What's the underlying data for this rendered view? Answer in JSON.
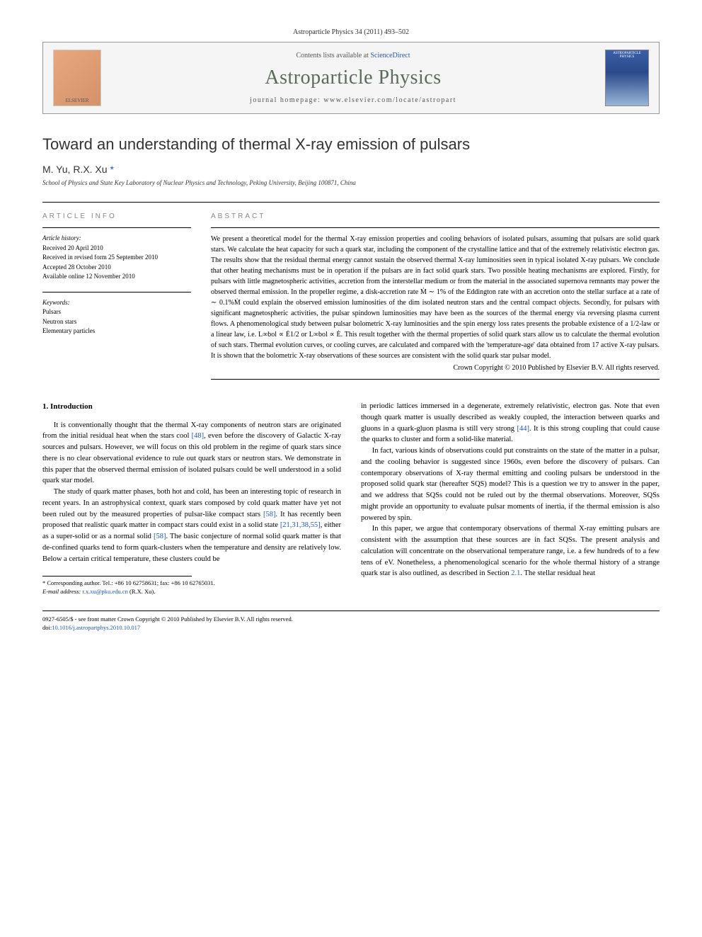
{
  "header_citation": "Astroparticle Physics 34 (2011) 493–502",
  "banner": {
    "elsevier_label": "ELSEVIER",
    "contents_prefix": "Contents lists available at ",
    "contents_link": "ScienceDirect",
    "journal_title": "Astroparticle Physics",
    "homepage_label": "journal homepage: www.elsevier.com/locate/astropart",
    "cover_label": "ASTROPARTICLE PHYSICS"
  },
  "article": {
    "title": "Toward an understanding of thermal X-ray emission of pulsars",
    "authors_html": "M. Yu, R.X. Xu",
    "corr_mark": "*",
    "affiliation": "School of Physics and State Key Laboratory of Nuclear Physics and Technology, Peking University, Beijing 100871, China"
  },
  "info": {
    "heading": "ARTICLE INFO",
    "history_label": "Article history:",
    "received": "Received 20 April 2010",
    "revised": "Received in revised form 25 September 2010",
    "accepted": "Accepted 28 October 2010",
    "online": "Available online 12 November 2010",
    "keywords_label": "Keywords:",
    "keywords": [
      "Pulsars",
      "Neutron stars",
      "Elementary particles"
    ]
  },
  "abstract": {
    "heading": "ABSTRACT",
    "text": "We present a theoretical model for the thermal X-ray emission properties and cooling behaviors of isolated pulsars, assuming that pulsars are solid quark stars. We calculate the heat capacity for such a quark star, including the component of the crystalline lattice and that of the extremely relativistic electron gas. The results show that the residual thermal energy cannot sustain the observed thermal X-ray luminosities seen in typical isolated X-ray pulsars. We conclude that other heating mechanisms must be in operation if the pulsars are in fact solid quark stars. Two possible heating mechanisms are explored. Firstly, for pulsars with little magnetospheric activities, accretion from the interstellar medium or from the material in the associated supernova remnants may power the observed thermal emission. In the propeller regime, a disk-accretion rate Ṁ ∼ 1% of the Eddington rate with an accretion onto the stellar surface at a rate of ∼ 0.1%Ṁ could explain the observed emission luminosities of the dim isolated neutron stars and the central compact objects. Secondly, for pulsars with significant magnetospheric activities, the pulsar spindown luminosities may have been as the sources of the thermal energy via reversing plasma current flows. A phenomenological study between pulsar bolometric X-ray luminosities and the spin energy loss rates presents the probable existence of a 1/2-law or a linear law, i.e. L∞bol ∝ Ė1/2 or L∞bol ∝ Ė. This result together with the thermal properties of solid quark stars allow us to calculate the thermal evolution of such stars. Thermal evolution curves, or cooling curves, are calculated and compared with the 'temperature-age' data obtained from 17 active X-ray pulsars. It is shown that the bolometric X-ray observations of these sources are consistent with the solid quark star pulsar model.",
    "copyright": "Crown Copyright © 2010 Published by Elsevier B.V. All rights reserved."
  },
  "body": {
    "section_heading": "1. Introduction",
    "col1_p1": "It is conventionally thought that the thermal X-ray components of neutron stars are originated from the initial residual heat when the stars cool [48], even before the discovery of Galactic X-ray sources and pulsars. However, we will focus on this old problem in the regime of quark stars since there is no clear observational evidence to rule out quark stars or neutron stars. We demonstrate in this paper that the observed thermal emission of isolated pulsars could be well understood in a solid quark star model.",
    "col1_p2": "The study of quark matter phases, both hot and cold, has been an interesting topic of research in recent years. In an astrophysical context, quark stars composed by cold quark matter have yet not been ruled out by the measured properties of pulsar-like compact stars [58]. It has recently been proposed that realistic quark matter in compact stars could exist in a solid state [21,31,38,55], either as a super-solid or as a normal solid [58]. The basic conjecture of normal solid quark matter is that de-confined quarks tend to form quark-clusters when the temperature and density are relatively low. Below a certain critical temperature, these clusters could be",
    "col2_p1": "in periodic lattices immersed in a degenerate, extremely relativistic, electron gas. Note that even though quark matter is usually described as weakly coupled, the interaction between quarks and gluons in a quark-gluon plasma is still very strong [44]. It is this strong coupling that could cause the quarks to cluster and form a solid-like material.",
    "col2_p2": "In fact, various kinds of observations could put constraints on the state of the matter in a pulsar, and the cooling behavior is suggested since 1960s, even before the discovery of pulsars. Can contemporary observations of X-ray thermal emitting and cooling pulsars be understood in the proposed solid quark star (hereafter SQS) model? This is a question we try to answer in the paper, and we address that SQSs could not be ruled out by the thermal observations. Moreover, SQSs might provide an opportunity to evaluate pulsar moments of inertia, if the thermal emission is also powered by spin.",
    "col2_p3": "In this paper, we argue that contemporary observations of thermal X-ray emitting pulsars are consistent with the assumption that these sources are in fact SQSs. The present analysis and calculation will concentrate on the observational temperature range, i.e. a few hundreds of to a few tens of eV. Nonetheless, a phenomenological scenario for the whole thermal history of a strange quark star is also outlined, as described in Section 2.1. The stellar residual heat"
  },
  "footnote": {
    "corr_text": "* Corresponding author. Tel.: +86 10 62758631; fax: +86 10 62765031.",
    "email_label": "E-mail address:",
    "email": "r.x.xu@pku.edu.cn",
    "email_name": "(R.X. Xu)."
  },
  "bottom": {
    "line1": "0927-6505/$ - see front matter Crown Copyright © 2010 Published by Elsevier B.V. All rights reserved.",
    "doi_label": "doi:",
    "doi": "10.1016/j.astropartphys.2010.10.017"
  },
  "refs": {
    "r48": "[48]",
    "r58": "[58]",
    "r21": "[21,31,38,55]",
    "r44": "[44]",
    "s21": "2.1"
  }
}
